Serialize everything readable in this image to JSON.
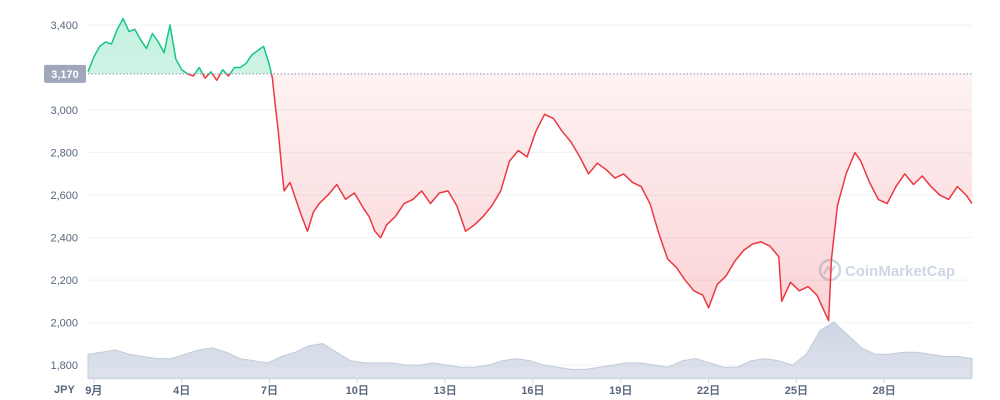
{
  "chart_data": {
    "type": "area",
    "currency_label": "JPY",
    "baseline": {
      "value": 3170,
      "label": "3,170"
    },
    "ylim": [
      1740,
      3480
    ],
    "y_ticks": [
      {
        "value": 3400,
        "label": "3,400"
      },
      {
        "value": 3000,
        "label": "3,000"
      },
      {
        "value": 2800,
        "label": "2,800"
      },
      {
        "value": 2600,
        "label": "2,600"
      },
      {
        "value": 2400,
        "label": "2,400"
      },
      {
        "value": 2200,
        "label": "2,200"
      },
      {
        "value": 2000,
        "label": "2,000"
      },
      {
        "value": 1800,
        "label": "1,800"
      }
    ],
    "x_range_days": [
      0.8,
      31.0
    ],
    "x_ticks": [
      {
        "day": 1,
        "label": "9月"
      },
      {
        "day": 4,
        "label": "4日"
      },
      {
        "day": 7,
        "label": "7日"
      },
      {
        "day": 10,
        "label": "10日"
      },
      {
        "day": 13,
        "label": "13日"
      },
      {
        "day": 16,
        "label": "16日"
      },
      {
        "day": 19,
        "label": "19日"
      },
      {
        "day": 22,
        "label": "22日"
      },
      {
        "day": 25,
        "label": "25日"
      },
      {
        "day": 28,
        "label": "28日"
      }
    ],
    "series": [
      {
        "points": [
          [
            0.8,
            3180
          ],
          [
            1.0,
            3250
          ],
          [
            1.2,
            3300
          ],
          [
            1.4,
            3320
          ],
          [
            1.6,
            3310
          ],
          [
            1.8,
            3380
          ],
          [
            2.0,
            3430
          ],
          [
            2.2,
            3370
          ],
          [
            2.4,
            3380
          ],
          [
            2.6,
            3330
          ],
          [
            2.8,
            3290
          ],
          [
            3.0,
            3360
          ],
          [
            3.2,
            3320
          ],
          [
            3.4,
            3270
          ],
          [
            3.6,
            3400
          ],
          [
            3.8,
            3240
          ],
          [
            4.0,
            3190
          ],
          [
            4.2,
            3170
          ],
          [
            4.4,
            3160
          ],
          [
            4.6,
            3200
          ],
          [
            4.8,
            3150
          ],
          [
            5.0,
            3180
          ],
          [
            5.2,
            3140
          ],
          [
            5.4,
            3190
          ],
          [
            5.6,
            3160
          ],
          [
            5.8,
            3200
          ],
          [
            6.0,
            3200
          ],
          [
            6.2,
            3220
          ],
          [
            6.4,
            3260
          ],
          [
            6.6,
            3280
          ],
          [
            6.8,
            3300
          ],
          [
            7.0,
            3210
          ],
          [
            7.1,
            3150
          ],
          [
            7.2,
            3020
          ],
          [
            7.3,
            2900
          ],
          [
            7.4,
            2750
          ],
          [
            7.5,
            2620
          ],
          [
            7.7,
            2660
          ],
          [
            7.9,
            2580
          ],
          [
            8.1,
            2500
          ],
          [
            8.3,
            2430
          ],
          [
            8.5,
            2520
          ],
          [
            8.7,
            2560
          ],
          [
            9.0,
            2600
          ],
          [
            9.3,
            2650
          ],
          [
            9.6,
            2580
          ],
          [
            9.9,
            2610
          ],
          [
            10.2,
            2540
          ],
          [
            10.4,
            2500
          ],
          [
            10.6,
            2430
          ],
          [
            10.8,
            2400
          ],
          [
            11.0,
            2460
          ],
          [
            11.3,
            2500
          ],
          [
            11.6,
            2560
          ],
          [
            11.9,
            2580
          ],
          [
            12.2,
            2620
          ],
          [
            12.5,
            2560
          ],
          [
            12.8,
            2610
          ],
          [
            13.1,
            2620
          ],
          [
            13.4,
            2550
          ],
          [
            13.7,
            2430
          ],
          [
            14.0,
            2460
          ],
          [
            14.3,
            2500
          ],
          [
            14.6,
            2550
          ],
          [
            14.9,
            2620
          ],
          [
            15.2,
            2760
          ],
          [
            15.5,
            2810
          ],
          [
            15.8,
            2780
          ],
          [
            16.1,
            2900
          ],
          [
            16.4,
            2980
          ],
          [
            16.7,
            2960
          ],
          [
            17.0,
            2900
          ],
          [
            17.3,
            2850
          ],
          [
            17.6,
            2780
          ],
          [
            17.9,
            2700
          ],
          [
            18.2,
            2750
          ],
          [
            18.5,
            2720
          ],
          [
            18.8,
            2680
          ],
          [
            19.1,
            2700
          ],
          [
            19.4,
            2660
          ],
          [
            19.7,
            2640
          ],
          [
            20.0,
            2560
          ],
          [
            20.3,
            2420
          ],
          [
            20.6,
            2300
          ],
          [
            20.9,
            2260
          ],
          [
            21.2,
            2200
          ],
          [
            21.5,
            2150
          ],
          [
            21.8,
            2130
          ],
          [
            22.0,
            2070
          ],
          [
            22.3,
            2180
          ],
          [
            22.6,
            2220
          ],
          [
            22.9,
            2290
          ],
          [
            23.2,
            2340
          ],
          [
            23.5,
            2370
          ],
          [
            23.8,
            2380
          ],
          [
            24.1,
            2360
          ],
          [
            24.4,
            2310
          ],
          [
            24.5,
            2100
          ],
          [
            24.8,
            2190
          ],
          [
            25.1,
            2150
          ],
          [
            25.4,
            2170
          ],
          [
            25.7,
            2130
          ],
          [
            26.0,
            2040
          ],
          [
            26.1,
            2010
          ],
          [
            26.2,
            2300
          ],
          [
            26.4,
            2550
          ],
          [
            26.7,
            2700
          ],
          [
            27.0,
            2800
          ],
          [
            27.2,
            2760
          ],
          [
            27.5,
            2660
          ],
          [
            27.8,
            2580
          ],
          [
            28.1,
            2560
          ],
          [
            28.4,
            2640
          ],
          [
            28.7,
            2700
          ],
          [
            29.0,
            2650
          ],
          [
            29.3,
            2690
          ],
          [
            29.6,
            2640
          ],
          [
            29.9,
            2600
          ],
          [
            30.2,
            2580
          ],
          [
            30.5,
            2640
          ],
          [
            30.8,
            2600
          ],
          [
            31.0,
            2560
          ]
        ]
      }
    ],
    "volume": {
      "values": [
        1850,
        1860,
        1870,
        1850,
        1840,
        1830,
        1830,
        1850,
        1870,
        1880,
        1860,
        1830,
        1820,
        1810,
        1840,
        1860,
        1890,
        1900,
        1860,
        1820,
        1810,
        1810,
        1810,
        1800,
        1800,
        1810,
        1800,
        1790,
        1790,
        1800,
        1820,
        1830,
        1820,
        1800,
        1790,
        1780,
        1780,
        1790,
        1800,
        1810,
        1810,
        1800,
        1790,
        1820,
        1830,
        1810,
        1790,
        1790,
        1820,
        1830,
        1820,
        1800,
        1850,
        1960,
        2000,
        1940,
        1880,
        1850,
        1850,
        1860,
        1860,
        1850,
        1840,
        1840,
        1830
      ]
    },
    "watermark": "CoinMarketCap",
    "colors": {
      "up": "#16c784",
      "down": "#ea3943",
      "grid": "#eff2f5",
      "axis_text": "#58667e",
      "baseline_label_bg": "#a1a7bb",
      "volume": "#cfd6e4",
      "watermark": "#cfd6e4"
    }
  }
}
